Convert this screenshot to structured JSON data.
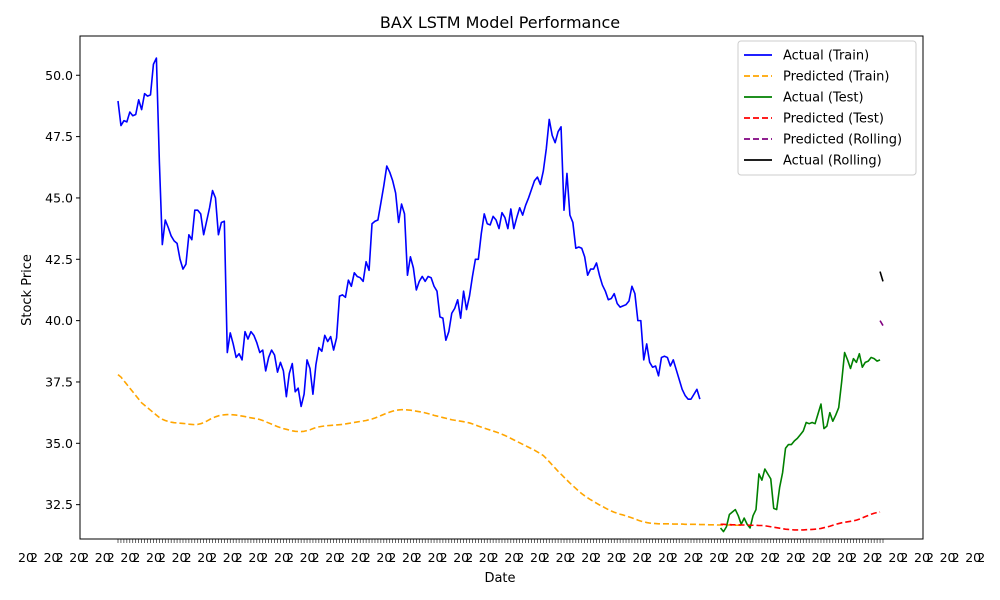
{
  "chart_data": {
    "type": "line",
    "title": "BAX LSTM Model Performance",
    "xlabel": "Date",
    "ylabel": "Stock Price",
    "ylim": [
      31.1,
      51.6
    ],
    "yticks": [
      32.5,
      35.0,
      37.5,
      40.0,
      42.5,
      45.0,
      47.5,
      50.0
    ],
    "ytick_labels": [
      "32.5",
      "35.0",
      "37.5",
      "40.0",
      "42.5",
      "45.0",
      "47.5",
      "50.0"
    ],
    "x_points": 204,
    "xtick_labels_note": "tick labels are overlapping and illegible",
    "grid": false,
    "legend_position": "top-right",
    "series": [
      {
        "name": "Actual (Train)",
        "color": "#0000ff",
        "style": "solid",
        "x_start": 0,
        "values": [
          48.95,
          47.95,
          48.15,
          48.1,
          48.5,
          48.35,
          48.4,
          49.0,
          48.6,
          49.25,
          49.15,
          49.2,
          50.45,
          50.7,
          46.5,
          43.1,
          44.1,
          43.8,
          43.45,
          43.25,
          43.15,
          42.5,
          42.1,
          42.3,
          43.5,
          43.3,
          44.5,
          44.5,
          44.35,
          43.5,
          44.05,
          44.6,
          45.3,
          45.0,
          43.5,
          44.0,
          44.05,
          38.7,
          39.5,
          39.05,
          38.5,
          38.65,
          38.4,
          39.55,
          39.25,
          39.55,
          39.4,
          39.1,
          38.7,
          38.8,
          37.95,
          38.5,
          38.8,
          38.6,
          37.9,
          38.3,
          37.95,
          36.9,
          37.85,
          38.25,
          37.1,
          37.25,
          36.5,
          37.0,
          38.4,
          38.05,
          37.0,
          38.2,
          38.9,
          38.75,
          39.4,
          39.15,
          39.35,
          38.8,
          39.3,
          41.0,
          41.05,
          40.95,
          41.65,
          41.4,
          41.95,
          41.8,
          41.75,
          41.6,
          42.4,
          42.05,
          43.95,
          44.05,
          44.1,
          44.8,
          45.5,
          46.3,
          46.05,
          45.7,
          45.2,
          44.0,
          44.75,
          44.35,
          41.85,
          42.6,
          42.15,
          41.25,
          41.6,
          41.8,
          41.6,
          41.8,
          41.75,
          41.4,
          41.2,
          40.15,
          40.1,
          39.2,
          39.55,
          40.3,
          40.5,
          40.85,
          40.1,
          41.2,
          40.45,
          41.0,
          41.8,
          42.5,
          42.5,
          43.55,
          44.35,
          43.95,
          43.9,
          44.25,
          44.1,
          43.75,
          44.4,
          44.2,
          43.75,
          44.55,
          43.75,
          44.2,
          44.6,
          44.3,
          44.7,
          45.0,
          45.35,
          45.7,
          45.85,
          45.55,
          46.1,
          47.0,
          48.2,
          47.55,
          47.25,
          47.7,
          47.9,
          44.5,
          46.0,
          44.3,
          44.0,
          42.95,
          43.0,
          42.95,
          42.6,
          41.85,
          42.1,
          42.1,
          42.35,
          41.85,
          41.45,
          41.2,
          40.85,
          40.9,
          41.1,
          40.7,
          40.55,
          40.6,
          40.65,
          40.8,
          41.4,
          41.1,
          40.0,
          40.0,
          38.4,
          39.05,
          38.3,
          38.1,
          38.15,
          37.75,
          38.5,
          38.55,
          38.5,
          38.15,
          38.4,
          38.0,
          37.6,
          37.2,
          36.95,
          36.8,
          36.8,
          37.0,
          37.2,
          36.8
        ]
      },
      {
        "name": "Predicted (Train)",
        "color": "#ffa500",
        "style": "dashed",
        "x_start": 0,
        "values": [
          37.8,
          37.7,
          37.55,
          37.4,
          37.25,
          37.1,
          36.95,
          36.8,
          36.65,
          36.55,
          36.45,
          36.35,
          36.25,
          36.15,
          36.05,
          35.98,
          35.93,
          35.89,
          35.86,
          35.84,
          35.83,
          35.82,
          35.81,
          35.8,
          35.78,
          35.77,
          35.76,
          35.77,
          35.8,
          35.84,
          35.9,
          35.97,
          36.03,
          36.08,
          36.12,
          36.15,
          36.16,
          36.17,
          36.17,
          36.16,
          36.15,
          36.13,
          36.11,
          36.09,
          36.06,
          36.04,
          36.02,
          36.0,
          35.97,
          35.93,
          35.88,
          35.83,
          35.78,
          35.73,
          35.68,
          35.64,
          35.6,
          35.57,
          35.54,
          35.51,
          35.49,
          35.48,
          35.48,
          35.49,
          35.52,
          35.55,
          35.6,
          35.64,
          35.67,
          35.69,
          35.71,
          35.72,
          35.73,
          35.74,
          35.75,
          35.76,
          35.77,
          35.79,
          35.81,
          35.83,
          35.85,
          35.87,
          35.89,
          35.91,
          35.93,
          35.96,
          35.99,
          36.03,
          36.08,
          36.13,
          36.18,
          36.23,
          36.27,
          36.31,
          36.34,
          36.36,
          36.37,
          36.37,
          36.36,
          36.35,
          36.33,
          36.31,
          36.29,
          36.27,
          36.24,
          36.21,
          36.18,
          36.14,
          36.11,
          36.08,
          36.05,
          36.02,
          35.99,
          35.96,
          35.94,
          35.92,
          35.9,
          35.88,
          35.86,
          35.83,
          35.79,
          35.75,
          35.7,
          35.66,
          35.62,
          35.58,
          35.54,
          35.5,
          35.46,
          35.42,
          35.37,
          35.32,
          35.26,
          35.2,
          35.14,
          35.08,
          35.02,
          34.96,
          34.9,
          34.84,
          34.78,
          34.72,
          34.65,
          34.58,
          34.5,
          34.38,
          34.25,
          34.12,
          33.99,
          33.86,
          33.74,
          33.62,
          33.5,
          33.38,
          33.27,
          33.16,
          33.05,
          32.95,
          32.86,
          32.78,
          32.7,
          32.63,
          32.56,
          32.49,
          32.43,
          32.36,
          32.3,
          32.24,
          32.19,
          32.15,
          32.11,
          32.08,
          32.04,
          32.0,
          31.96,
          31.92,
          31.87,
          31.83,
          31.8,
          31.77,
          31.75,
          31.74,
          31.73,
          31.72,
          31.72,
          31.72,
          31.72,
          31.72,
          31.71,
          31.71,
          31.71,
          31.71,
          31.7,
          31.7,
          31.7,
          31.7,
          31.7,
          31.69,
          31.69,
          31.69,
          31.68,
          31.68,
          31.68,
          31.67,
          31.67,
          31.67,
          31.67,
          31.67,
          31.66,
          31.66,
          31.66,
          31.66
        ]
      },
      {
        "name": "Actual (Test)",
        "color": "#008000",
        "style": "solid",
        "x_start": 204,
        "values": [
          31.55,
          31.4,
          31.6,
          32.1,
          32.2,
          32.3,
          32.05,
          31.7,
          31.95,
          31.7,
          31.55,
          32.05,
          32.3,
          33.75,
          33.5,
          33.95,
          33.75,
          33.55,
          32.35,
          32.3,
          33.2,
          33.8,
          34.8,
          34.95,
          34.95,
          35.1,
          35.2,
          35.35,
          35.5,
          35.85,
          35.8,
          35.85,
          35.8,
          36.2,
          36.6,
          35.6,
          35.7,
          36.25,
          35.9,
          36.15,
          36.45,
          37.5,
          38.7,
          38.4,
          38.05,
          38.45,
          38.3,
          38.65,
          38.1,
          38.3,
          38.35,
          38.5,
          38.45,
          38.35,
          38.4
        ]
      },
      {
        "name": "Predicted (Test)",
        "color": "#ff0000",
        "style": "dashed",
        "x_start": 204,
        "values": [
          31.7,
          31.7,
          31.69,
          31.69,
          31.68,
          31.68,
          31.68,
          31.67,
          31.67,
          31.67,
          31.66,
          31.66,
          31.66,
          31.65,
          31.65,
          31.64,
          31.62,
          31.6,
          31.58,
          31.56,
          31.54,
          31.52,
          31.5,
          31.49,
          31.48,
          31.47,
          31.47,
          31.47,
          31.47,
          31.48,
          31.48,
          31.49,
          31.5,
          31.51,
          31.53,
          31.56,
          31.59,
          31.62,
          31.66,
          31.7,
          31.73,
          31.76,
          31.78,
          31.8,
          31.82,
          31.84,
          31.87,
          31.91,
          31.96,
          32.01,
          32.06,
          32.11,
          32.15,
          32.18,
          32.2
        ]
      },
      {
        "name": "Predicted (Rolling)",
        "color": "#800080",
        "style": "dashed",
        "x_start": 258,
        "values": [
          40.0,
          39.8
        ]
      },
      {
        "name": "Actual (Rolling)",
        "color": "#000000",
        "style": "solid",
        "x_start": 258,
        "values": [
          42.0,
          41.6
        ]
      }
    ]
  }
}
